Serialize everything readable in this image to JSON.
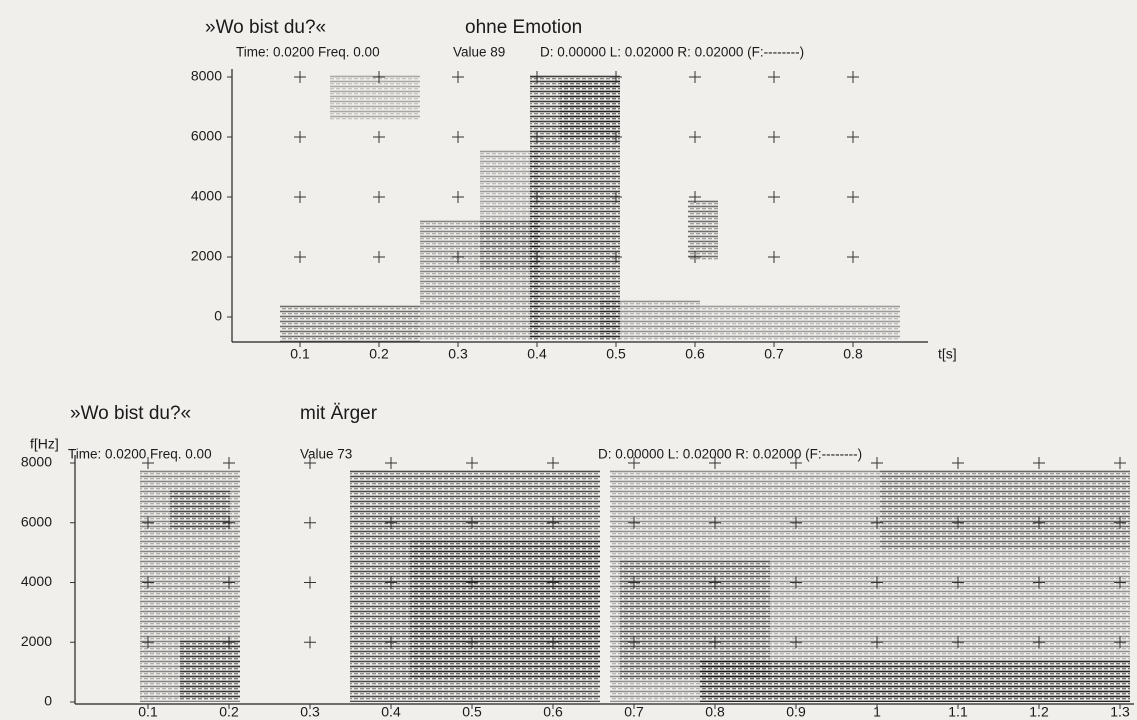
{
  "panels": [
    {
      "phrase": "»Wo bist du?«",
      "emotion": "ohne Emotion",
      "info_time": "Time: 0.0200 Freq. 0.00",
      "info_value": "Value 89",
      "info_window": "D: 0.00000 L: 0.02000 R: 0.02000 (F:--------)",
      "yticks": [
        0,
        2000,
        4000,
        6000,
        8000
      ],
      "xticks": [
        0.1,
        0.2,
        0.3,
        0.4,
        0.5,
        0.6,
        0.7,
        0.8
      ],
      "x_axis_label": "t[s]"
    },
    {
      "phrase": "»Wo bist du?«",
      "emotion": "mit Ärger",
      "y_axis_label": "f[Hz]",
      "info_time": "Time: 0.0200 Freq. 0.00",
      "info_value": "Value 73",
      "info_window": "D: 0.00000 L: 0.02000 R: 0.02000 (F:--------)",
      "yticks": [
        0,
        2000,
        4000,
        6000,
        8000
      ],
      "xticks": [
        0.1,
        0.2,
        0.3,
        0.4,
        0.5,
        0.6,
        0.7,
        0.8,
        0.9,
        1,
        1.1,
        1.2,
        1.3
      ]
    }
  ]
}
